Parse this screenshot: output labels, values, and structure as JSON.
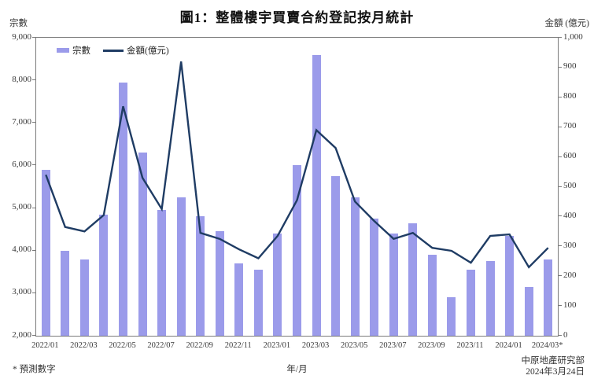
{
  "title": "圖1：整體樓宇買賣合約登記按月統計",
  "axes": {
    "left_label": "宗數",
    "right_label": "金額 (億元)",
    "x_label": "年/月",
    "left_ticks": [
      "9,000",
      "8,000",
      "7,000",
      "6,000",
      "5,000",
      "4,000",
      "3,000",
      "2,000"
    ],
    "right_ticks": [
      "1,000",
      "900",
      "800",
      "700",
      "600",
      "500",
      "400",
      "300",
      "200",
      "100",
      "0"
    ],
    "x_tick_labels": [
      "2022/01",
      "2022/03",
      "2022/05",
      "2022/07",
      "2022/09",
      "2022/11",
      "2023/01",
      "2023/03",
      "2023/05",
      "2023/07",
      "2023/09",
      "2023/11",
      "2024/01",
      "2024/03*"
    ]
  },
  "legend": {
    "bar_label": "宗數",
    "line_label": "金額(億元)"
  },
  "footer": {
    "note": "* 預測數字",
    "source_org": "中原地產研究部",
    "source_date": "2024年3月24日"
  },
  "colors": {
    "bar": "#9b9bea",
    "line": "#1f3c64",
    "axis": "#7a7a7a"
  },
  "chart_data": {
    "type": "bar",
    "title": "圖1：整體樓宇買賣合約登記按月統計",
    "xlabel": "年/月",
    "grid": false,
    "legend_position": "top-left-inside",
    "categories": [
      "2022/01",
      "2022/02",
      "2022/03",
      "2022/04",
      "2022/05",
      "2022/06",
      "2022/07",
      "2022/08",
      "2022/09",
      "2022/10",
      "2022/11",
      "2022/12",
      "2023/01",
      "2023/02",
      "2023/03",
      "2023/04",
      "2023/05",
      "2023/06",
      "2023/07",
      "2023/08",
      "2023/09",
      "2023/10",
      "2023/11",
      "2023/12",
      "2024/01",
      "2024/02",
      "2024/03*"
    ],
    "x_tick_every": 2,
    "left_axis": {
      "label": "宗數",
      "min": 2000,
      "max": 9000,
      "step": 1000
    },
    "right_axis": {
      "label": "金額 (億元)",
      "min": 0,
      "max": 1000,
      "step": 100
    },
    "series": [
      {
        "name": "宗數",
        "type": "bar",
        "axis": "left",
        "values": [
          5900,
          4000,
          3800,
          4850,
          7950,
          6300,
          4950,
          5250,
          4800,
          4450,
          3700,
          3550,
          4400,
          6000,
          8600,
          5750,
          5250,
          4750,
          4400,
          4650,
          3900,
          2900,
          3550,
          3750,
          4350,
          3150,
          3800
        ]
      },
      {
        "name": "金額(億元)",
        "type": "line",
        "axis": "right",
        "values": [
          540,
          365,
          350,
          405,
          770,
          530,
          425,
          920,
          345,
          325,
          290,
          260,
          335,
          455,
          690,
          630,
          450,
          385,
          325,
          345,
          295,
          285,
          245,
          335,
          340,
          230,
          295
        ]
      }
    ]
  }
}
